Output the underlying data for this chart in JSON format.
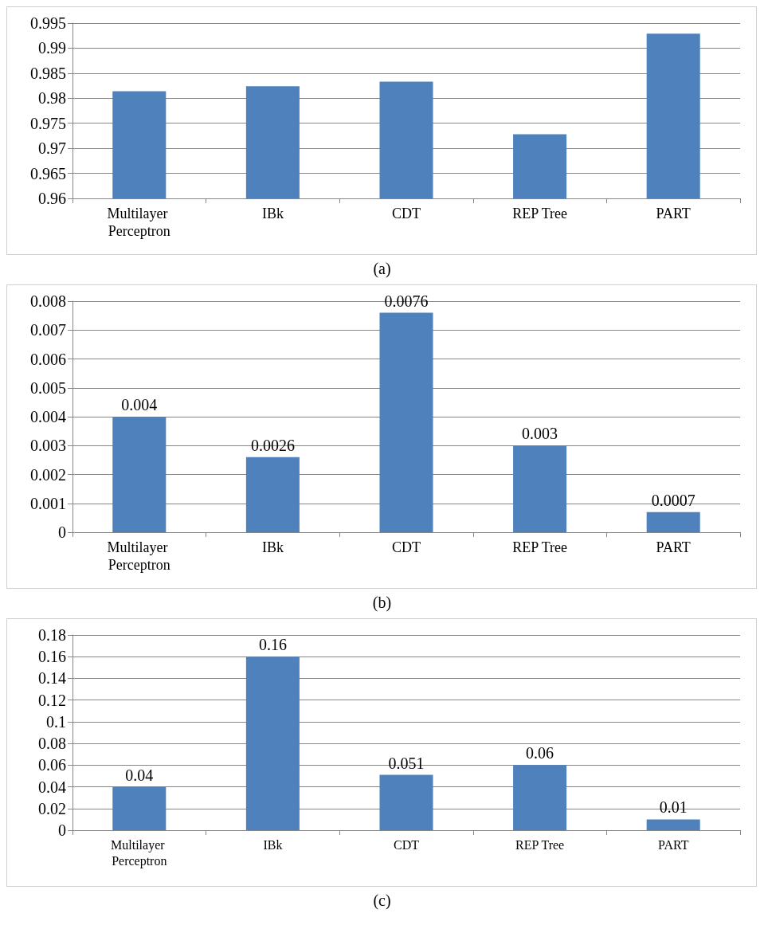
{
  "chart_data": [
    {
      "type": "bar",
      "categories": [
        "Multilayer Perceptron",
        "IBk",
        "CDT",
        "REP Tree",
        "PART"
      ],
      "values": [
        0.9814,
        0.9824,
        0.9833,
        0.9728,
        0.9929
      ],
      "color": "#4f81bd",
      "ylim": [
        0.96,
        0.995
      ],
      "yticks": [
        0.96,
        0.965,
        0.97,
        0.975,
        0.98,
        0.985,
        0.99,
        0.995
      ],
      "grid": "y",
      "annotations": [
        "(a)"
      ]
    },
    {
      "type": "bar",
      "categories": [
        "Multilayer Perceptron",
        "IBk",
        "CDT",
        "REP Tree",
        "PART"
      ],
      "values": [
        0.004,
        0.0026,
        0.0076,
        0.003,
        0.0007
      ],
      "color": "#4f81bd",
      "ylim": [
        0,
        0.008
      ],
      "yticks": [
        0,
        0.001,
        0.002,
        0.003,
        0.004,
        0.005,
        0.006,
        0.007,
        0.008
      ],
      "grid": "y",
      "data_labels": true,
      "annotations": [
        "(b)"
      ]
    },
    {
      "type": "bar",
      "categories": [
        "Multilayer Perceptron",
        "IBk",
        "CDT",
        "REP Tree",
        "PART"
      ],
      "values": [
        0.04,
        0.16,
        0.051,
        0.06,
        0.01
      ],
      "color": "#4f81bd",
      "ylim": [
        0,
        0.18
      ],
      "yticks": [
        0,
        0.02,
        0.04,
        0.06,
        0.08,
        0.1,
        0.12,
        0.14,
        0.16,
        0.18
      ],
      "grid": "y",
      "data_labels": true,
      "annotations": [
        "(c)"
      ]
    }
  ]
}
